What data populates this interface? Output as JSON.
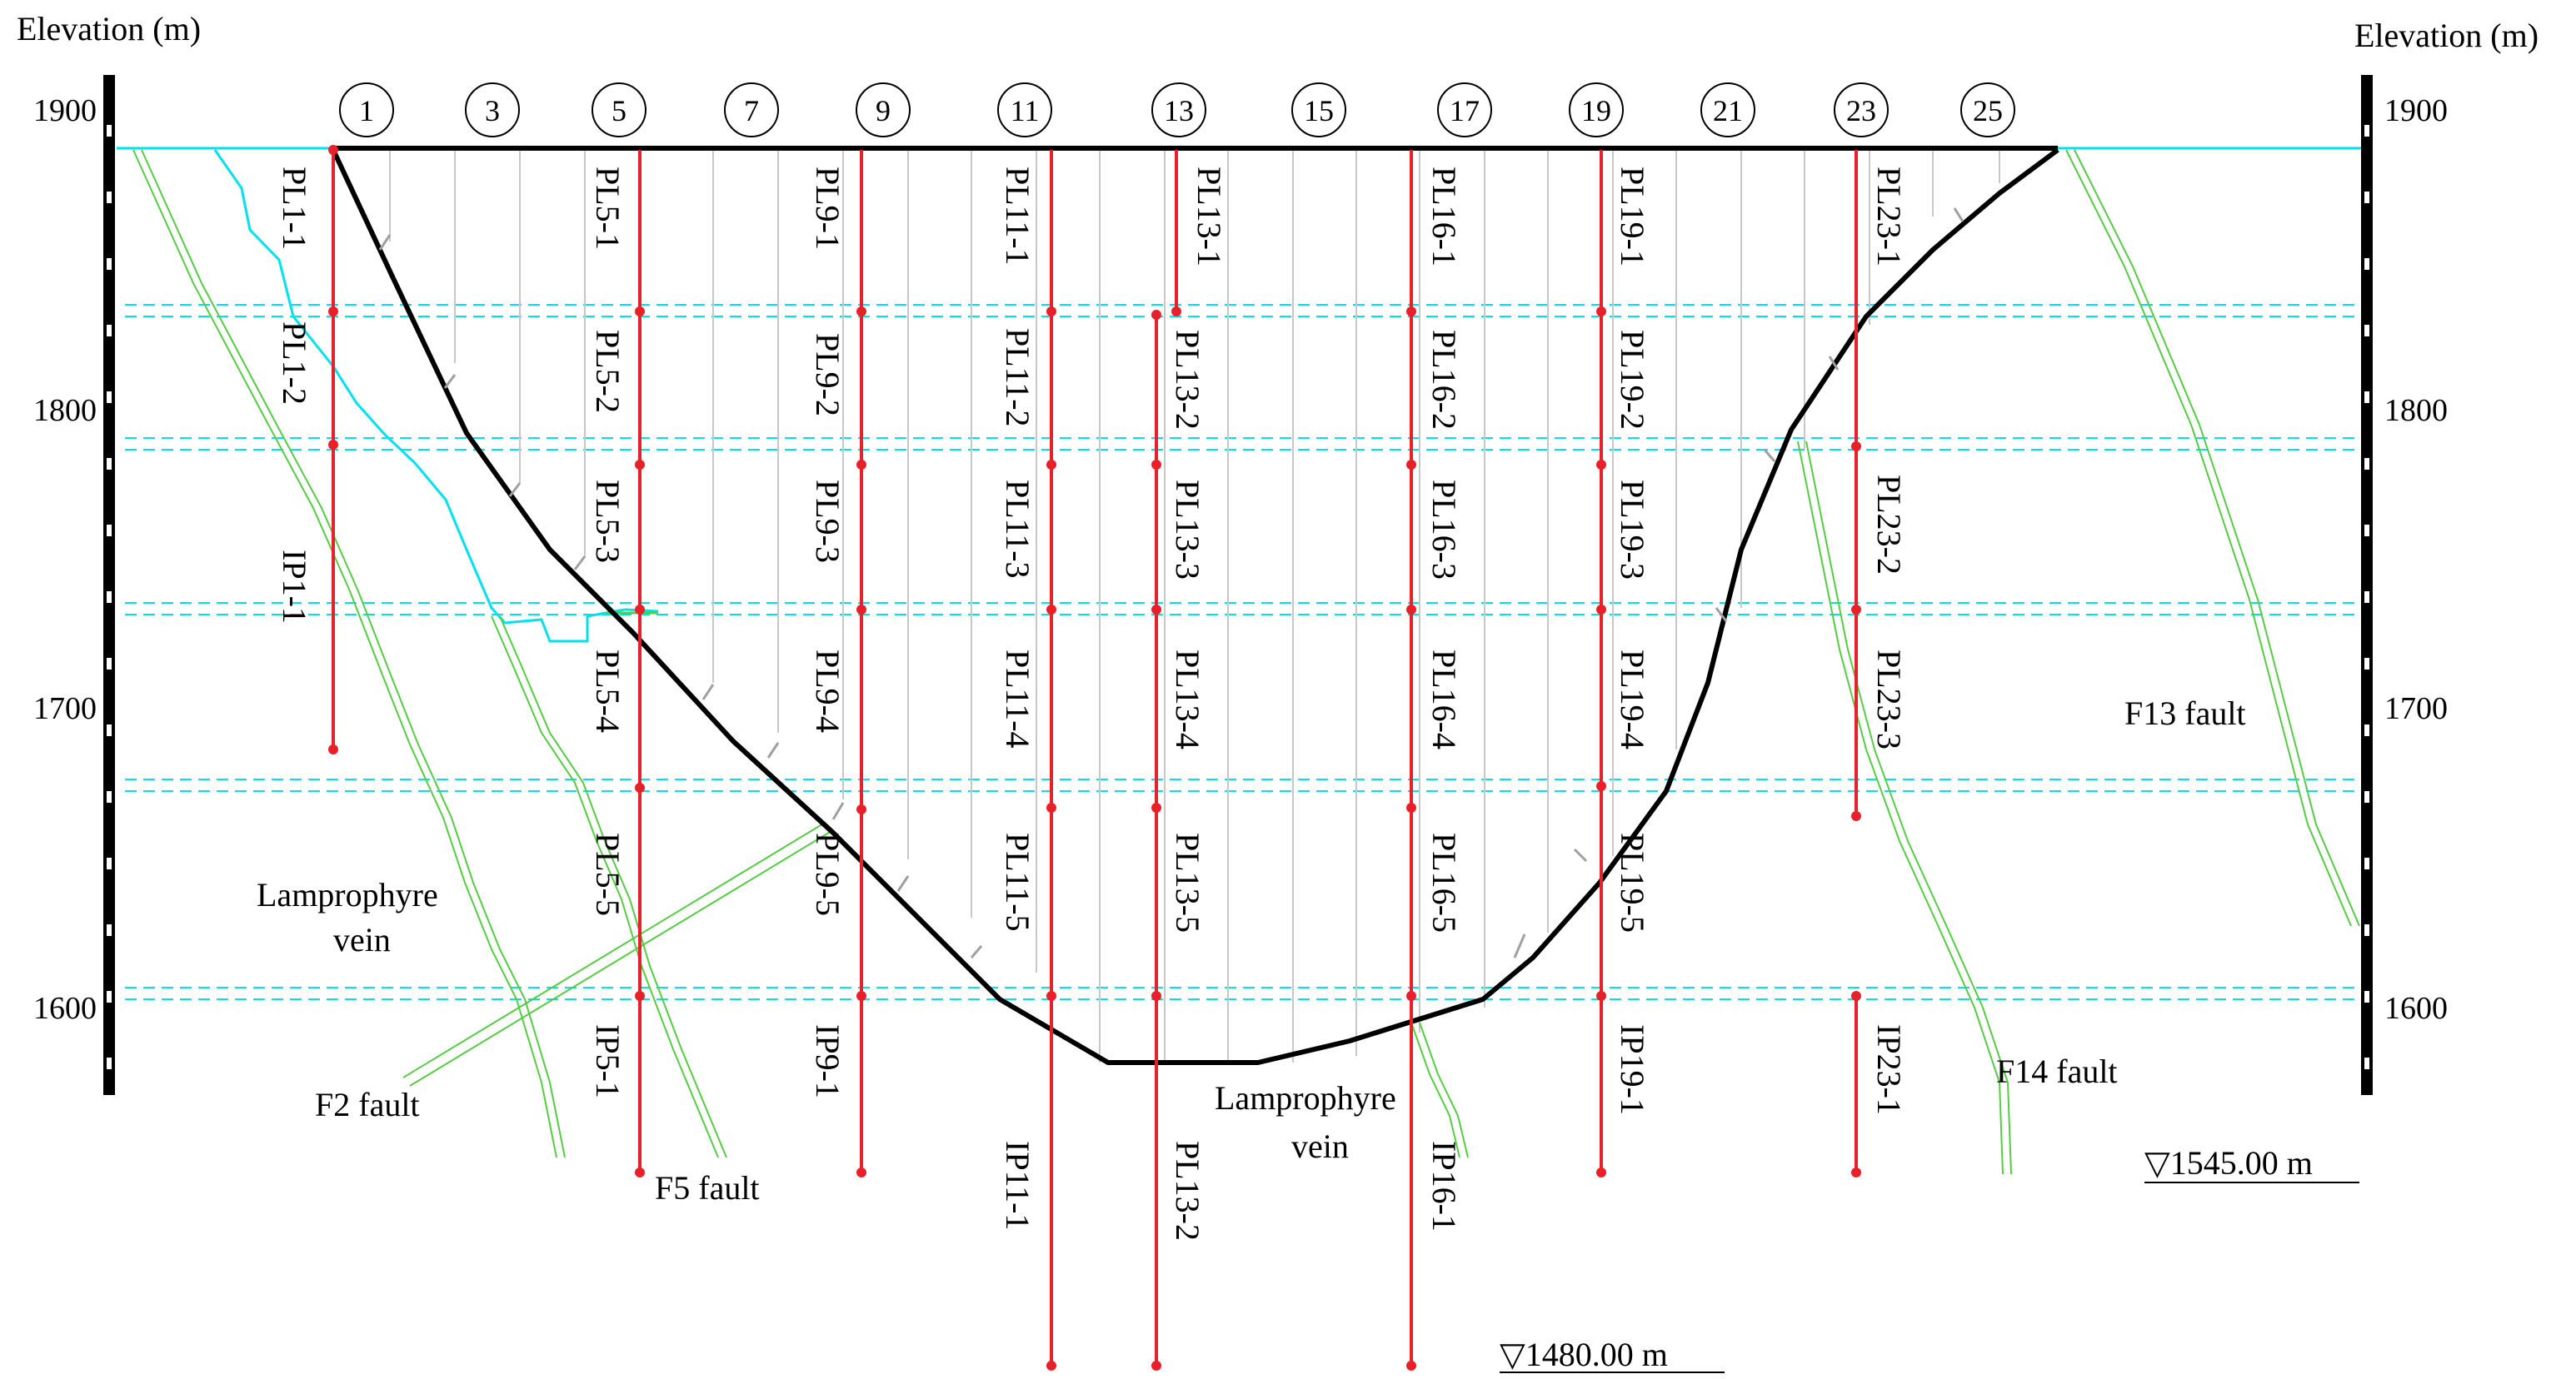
{
  "axes": {
    "left_title": "Elevation (m)",
    "right_title": "Elevation (m)",
    "ticks": [
      {
        "label": "1900",
        "value": 1900
      },
      {
        "label": "1800",
        "value": 1800
      },
      {
        "label": "1700",
        "value": 1700
      },
      {
        "label": "1600",
        "value": 1600
      }
    ]
  },
  "sections": [
    "1",
    "3",
    "5",
    "7",
    "9",
    "11",
    "13",
    "15",
    "17",
    "19",
    "21",
    "23",
    "25"
  ],
  "sensor_lines": [
    {
      "top": "PL1-1",
      "mid": [
        "PL1-2",
        "IP1-1"
      ],
      "bottom": []
    },
    {
      "top": "PL5-1",
      "mid": [
        "PL5-2",
        "PL5-3",
        "PL5-4",
        "PL5-5"
      ],
      "bottom": [
        "IP5-1"
      ]
    },
    {
      "top": "PL9-1",
      "mid": [
        "PL9-2",
        "PL9-3",
        "PL9-4",
        "PL9-5"
      ],
      "bottom": [
        "IP9-1"
      ]
    },
    {
      "top": "PL11-1",
      "mid": [
        "PL11-2",
        "PL11-3",
        "PL11-4",
        "PL11-5"
      ],
      "bottom": [
        "IP11-1"
      ]
    },
    {
      "top": "PL13-1",
      "mid": [
        "PL13-2",
        "PL13-3",
        "PL13-4",
        "PL13-5"
      ],
      "bottom": [
        "PL13-2"
      ]
    },
    {
      "top": "PL16-1",
      "mid": [
        "PL16-2",
        "PL16-3",
        "PL16-4",
        "PL16-5"
      ],
      "bottom": [
        "IP16-1"
      ]
    },
    {
      "top": "PL19-1",
      "mid": [
        "PL19-2",
        "PL19-3",
        "PL19-4",
        "PL19-5"
      ],
      "bottom": [
        "IP19-1"
      ]
    },
    {
      "top": "PL23-1",
      "mid": [
        "PL23-2",
        "PL23-3"
      ],
      "bottom": [
        "IP23-1"
      ]
    }
  ],
  "annotations": {
    "lamprophyre_left": [
      "Lamprophyre",
      "vein"
    ],
    "lamprophyre_right": [
      "Lamprophyre",
      "vein"
    ],
    "f2": "F2 fault",
    "f5": "F5 fault",
    "f13": "F13 fault",
    "f14": "F14 fault",
    "elev_1545": "▽1545.00 m",
    "elev_1480": "▽1480.00 m"
  },
  "colors": {
    "sensor_line": "#e8202a",
    "dam_profile": "#000000",
    "fault": "#55cc44",
    "water": "#00e0ee",
    "grid": "#c8c8c8",
    "gallery": "#00e0ee"
  }
}
